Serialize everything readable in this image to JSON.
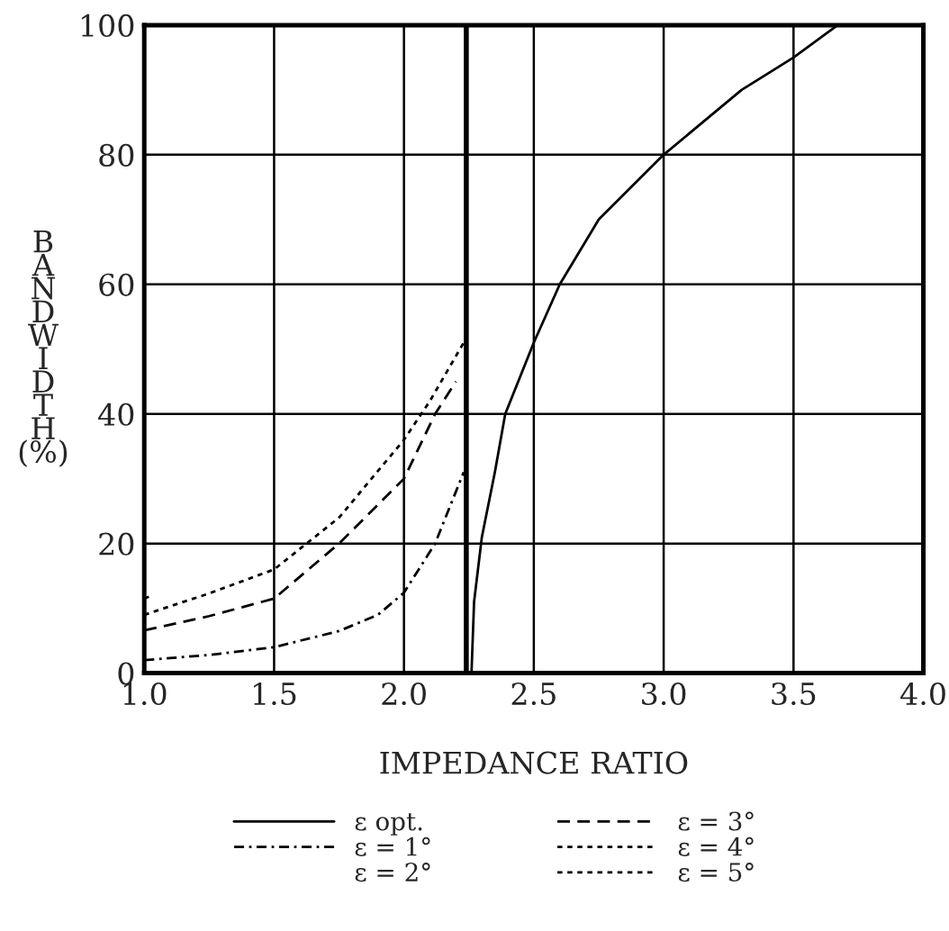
{
  "chart_data": {
    "type": "line",
    "xlabel": "IMPEDANCE RATIO",
    "ylabel": "BANDWIDTH (%)",
    "xlim": [
      1.0,
      4.0
    ],
    "ylim": [
      0,
      100
    ],
    "xticks": [
      {
        "value": 1.0,
        "label": "1.0"
      },
      {
        "value": 1.5,
        "label": "1.5"
      },
      {
        "value": 2.0,
        "label": "2.0"
      },
      {
        "value": 2.5,
        "label": "2.5"
      },
      {
        "value": 3.0,
        "label": "3.0"
      },
      {
        "value": 3.5,
        "label": "3.5"
      },
      {
        "value": 4.0,
        "label": "4.0"
      }
    ],
    "yticks": [
      0,
      20,
      40,
      60,
      80,
      100
    ],
    "annotations": [
      "ε = 2°"
    ],
    "grid": true,
    "legend": "bottom",
    "marker": "none",
    "ref_lines": [
      {
        "axis": "x",
        "value": 2.24,
        "label": null,
        "color": "#000000"
      }
    ],
    "series": [
      {
        "name": "ε opt.",
        "color": "#000000",
        "line_style": "solid",
        "x": [
          2.26,
          2.27,
          2.3,
          2.35,
          2.39,
          2.5,
          2.6,
          2.75,
          3.0,
          3.3,
          3.5,
          3.67
        ],
        "values": [
          0,
          11,
          21,
          31,
          40,
          51,
          60,
          70,
          80,
          90,
          95,
          100
        ]
      },
      {
        "name": "ε = 1°",
        "color": "#000000",
        "line_style": "dashdot",
        "x": [
          1.0,
          1.25,
          1.5,
          1.75,
          1.9,
          2.0,
          2.12,
          2.23
        ],
        "values": [
          2,
          2.8,
          4,
          6.5,
          9,
          12.4,
          20,
          31
        ]
      },
      {
        "name": "ε = 3°",
        "color": "#000000",
        "line_style": "dashed",
        "x": [
          1.0,
          1.25,
          1.5,
          1.75,
          2.0,
          2.12,
          2.2
        ],
        "values": [
          6.6,
          8.8,
          11.5,
          20,
          30,
          40,
          45
        ]
      },
      {
        "name": "ε = 4°",
        "color": "#000000",
        "line_style": "dotted",
        "x": [
          1.0,
          1.25,
          1.5,
          1.75,
          2.0,
          2.1,
          2.23
        ],
        "values": [
          9,
          12.3,
          16,
          24,
          36,
          42,
          51
        ]
      },
      {
        "name": "ε = 5°",
        "color": "#000000",
        "line_style": "dotted",
        "x": [
          1.0,
          1.03
        ],
        "values": [
          11.5,
          12
        ]
      }
    ]
  }
}
